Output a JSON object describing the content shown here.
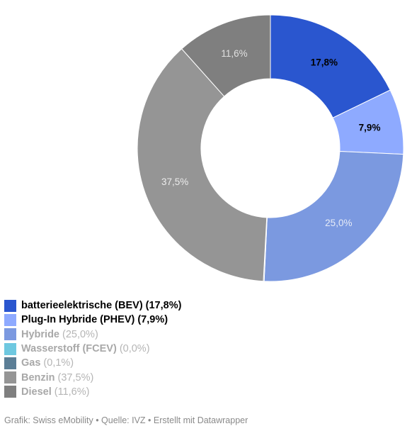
{
  "chart_data": {
    "type": "pie",
    "style": "donut",
    "legend_position": "bottom-left",
    "slices": [
      {
        "name": "batterieelektrische (BEV)",
        "value": 17.8,
        "label": "17,8%",
        "legend_value": "(17,8%)",
        "color": "#2a56cf",
        "highlighted": true,
        "label_color": "#000000"
      },
      {
        "name": "Plug-In Hybride (PHEV)",
        "value": 7.9,
        "label": "7,9%",
        "legend_value": "(7,9%)",
        "color": "#8eaaff",
        "highlighted": true,
        "label_color": "#000000"
      },
      {
        "name": "Hybride",
        "value": 25.0,
        "label": "25,0%",
        "legend_value": "(25,0%)",
        "color": "#7b99e0",
        "highlighted": false,
        "label_color": "#e6ebf7"
      },
      {
        "name": "Wasserstoff (FCEV)",
        "value": 0.0,
        "label": "",
        "legend_value": "(0,0%)",
        "color": "#6ec8e0",
        "highlighted": false,
        "label_color": "#ffffff"
      },
      {
        "name": "Gas",
        "value": 0.1,
        "label": "",
        "legend_value": "(0,1%)",
        "color": "#5b7e96",
        "highlighted": false,
        "label_color": "#ffffff"
      },
      {
        "name": "Benzin",
        "value": 37.5,
        "label": "37,5%",
        "legend_value": "(37,5%)",
        "color": "#959595",
        "highlighted": false,
        "label_color": "#ececec"
      },
      {
        "name": "Diesel",
        "value": 11.6,
        "label": "11,6%",
        "legend_value": "(11,6%)",
        "color": "#7f7f7f",
        "highlighted": false,
        "label_color": "#e0e0e0"
      }
    ]
  },
  "footer": {
    "text": "Grafik: Swiss eMobility • Quelle: IVZ • Erstellt mit Datawrapper"
  }
}
